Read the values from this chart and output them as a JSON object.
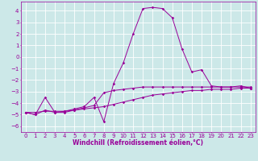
{
  "xlabel": "Windchill (Refroidissement éolien,°C)",
  "ylabel": "",
  "background_color": "#cce8e8",
  "line_color": "#990099",
  "grid_color": "#ffffff",
  "x_values": [
    0,
    1,
    2,
    3,
    4,
    5,
    6,
    7,
    8,
    9,
    10,
    11,
    12,
    13,
    14,
    15,
    16,
    17,
    18,
    19,
    20,
    21,
    22,
    23
  ],
  "line1": [
    -4.8,
    -5.0,
    -3.5,
    -4.8,
    -4.7,
    -4.5,
    -4.3,
    -3.5,
    -5.6,
    -2.3,
    -0.5,
    2.0,
    4.2,
    4.3,
    4.2,
    3.4,
    0.7,
    -1.3,
    -1.1,
    -2.5,
    -2.6,
    -2.6,
    -2.5,
    -2.7
  ],
  "line2": [
    -4.8,
    -5.0,
    -4.6,
    -4.8,
    -4.8,
    -4.6,
    -4.4,
    -4.2,
    -3.1,
    -2.9,
    -2.8,
    -2.7,
    -2.6,
    -2.6,
    -2.6,
    -2.6,
    -2.6,
    -2.6,
    -2.6,
    -2.6,
    -2.6,
    -2.6,
    -2.6,
    -2.6
  ],
  "line3": [
    -4.8,
    -4.8,
    -4.7,
    -4.7,
    -4.7,
    -4.6,
    -4.5,
    -4.4,
    -4.3,
    -4.1,
    -3.9,
    -3.7,
    -3.5,
    -3.3,
    -3.2,
    -3.1,
    -3.0,
    -2.9,
    -2.9,
    -2.8,
    -2.8,
    -2.8,
    -2.7,
    -2.7
  ],
  "ylim": [
    -6.5,
    4.8
  ],
  "xlim": [
    -0.5,
    23.5
  ],
  "yticks": [
    -6,
    -5,
    -4,
    -3,
    -2,
    -1,
    0,
    1,
    2,
    3,
    4
  ],
  "xticks": [
    0,
    1,
    2,
    3,
    4,
    5,
    6,
    7,
    8,
    9,
    10,
    11,
    12,
    13,
    14,
    15,
    16,
    17,
    18,
    19,
    20,
    21,
    22,
    23
  ],
  "font_size": 5.0,
  "xlabel_fontsize": 5.5,
  "marker_size": 1.8,
  "line_width": 0.7
}
